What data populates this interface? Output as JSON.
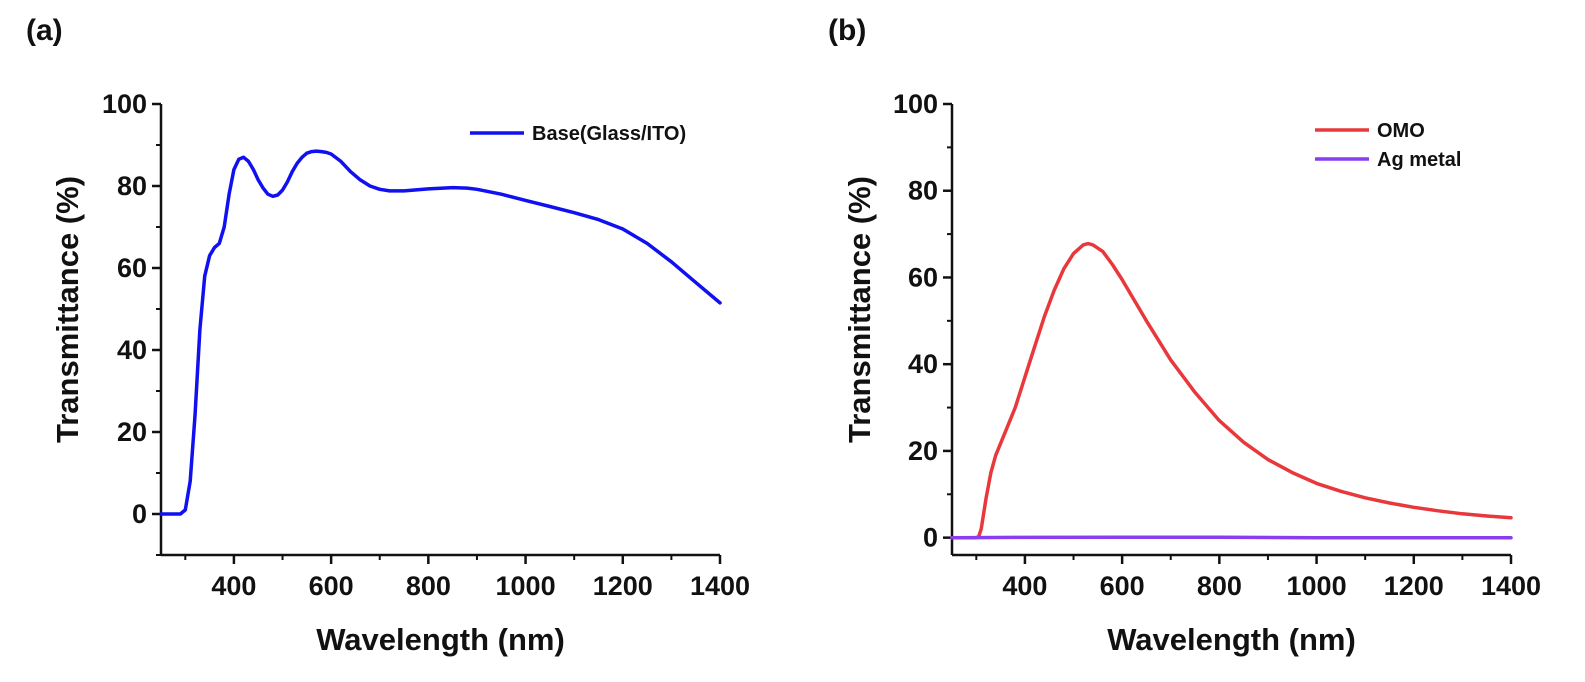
{
  "panels": {
    "a": {
      "label": "(a)"
    },
    "b": {
      "label": "(b)"
    }
  },
  "chart_data": [
    {
      "type": "line",
      "panel": "(a)",
      "xlabel": "Wavelength (nm)",
      "ylabel": "Transmittance (%)",
      "xlim": [
        250,
        1400
      ],
      "ylim": [
        -10,
        100
      ],
      "xticks": [
        400,
        600,
        800,
        1000,
        1200,
        1400
      ],
      "yticks": [
        0,
        20,
        40,
        60,
        80,
        100
      ],
      "legend_position": "top-right",
      "series": [
        {
          "name": "Base(Glass/ITO)",
          "color": "#1010f0",
          "x": [
            250,
            290,
            300,
            310,
            320,
            330,
            340,
            350,
            360,
            370,
            380,
            390,
            400,
            410,
            420,
            430,
            440,
            450,
            460,
            470,
            480,
            490,
            500,
            510,
            520,
            530,
            540,
            550,
            560,
            570,
            580,
            590,
            600,
            620,
            640,
            660,
            680,
            700,
            720,
            750,
            800,
            850,
            880,
            900,
            950,
            1000,
            1050,
            1100,
            1150,
            1200,
            1250,
            1300,
            1350,
            1400
          ],
          "y": [
            0,
            0,
            1,
            8,
            24,
            45,
            58,
            63,
            65,
            66,
            70,
            78,
            84,
            86.5,
            87,
            86,
            84,
            81.5,
            79.5,
            78,
            77.5,
            77.8,
            79,
            81,
            83.5,
            85.5,
            87,
            88,
            88.4,
            88.5,
            88.4,
            88.2,
            87.8,
            86,
            83.5,
            81.5,
            80,
            79.2,
            78.8,
            78.8,
            79.3,
            79.6,
            79.5,
            79.2,
            78,
            76.5,
            75,
            73.5,
            71.8,
            69.5,
            66,
            61.5,
            56.5,
            51.5
          ]
        }
      ]
    },
    {
      "type": "line",
      "panel": "(b)",
      "xlabel": "Wavelength (nm)",
      "ylabel": "Transmittance (%)",
      "xlim": [
        250,
        1400
      ],
      "ylim": [
        -4,
        100
      ],
      "xticks": [
        400,
        600,
        800,
        1000,
        1200,
        1400
      ],
      "yticks": [
        0,
        20,
        40,
        60,
        80,
        100
      ],
      "legend_position": "top-right",
      "series": [
        {
          "name": "OMO",
          "color": "#e8383b",
          "x": [
            250,
            300,
            305,
            310,
            320,
            330,
            340,
            360,
            380,
            400,
            420,
            440,
            460,
            480,
            500,
            520,
            530,
            540,
            560,
            580,
            600,
            650,
            700,
            750,
            800,
            850,
            900,
            950,
            1000,
            1050,
            1100,
            1150,
            1200,
            1250,
            1300,
            1350,
            1400
          ],
          "y": [
            0,
            0,
            0.3,
            2,
            9,
            15,
            19,
            24.5,
            30,
            37,
            44,
            51,
            57,
            62,
            65.5,
            67.5,
            67.8,
            67.5,
            66,
            63,
            59.5,
            50,
            41,
            33.5,
            27,
            22,
            18,
            15,
            12.5,
            10.7,
            9.2,
            8,
            7,
            6.2,
            5.5,
            5,
            4.6
          ]
        },
        {
          "name": "Ag metal",
          "color": "#8a3cf0",
          "x": [
            250,
            400,
            600,
            800,
            1000,
            1200,
            1400
          ],
          "y": [
            0,
            0.05,
            0.1,
            0.1,
            0,
            0,
            0
          ]
        }
      ]
    }
  ]
}
